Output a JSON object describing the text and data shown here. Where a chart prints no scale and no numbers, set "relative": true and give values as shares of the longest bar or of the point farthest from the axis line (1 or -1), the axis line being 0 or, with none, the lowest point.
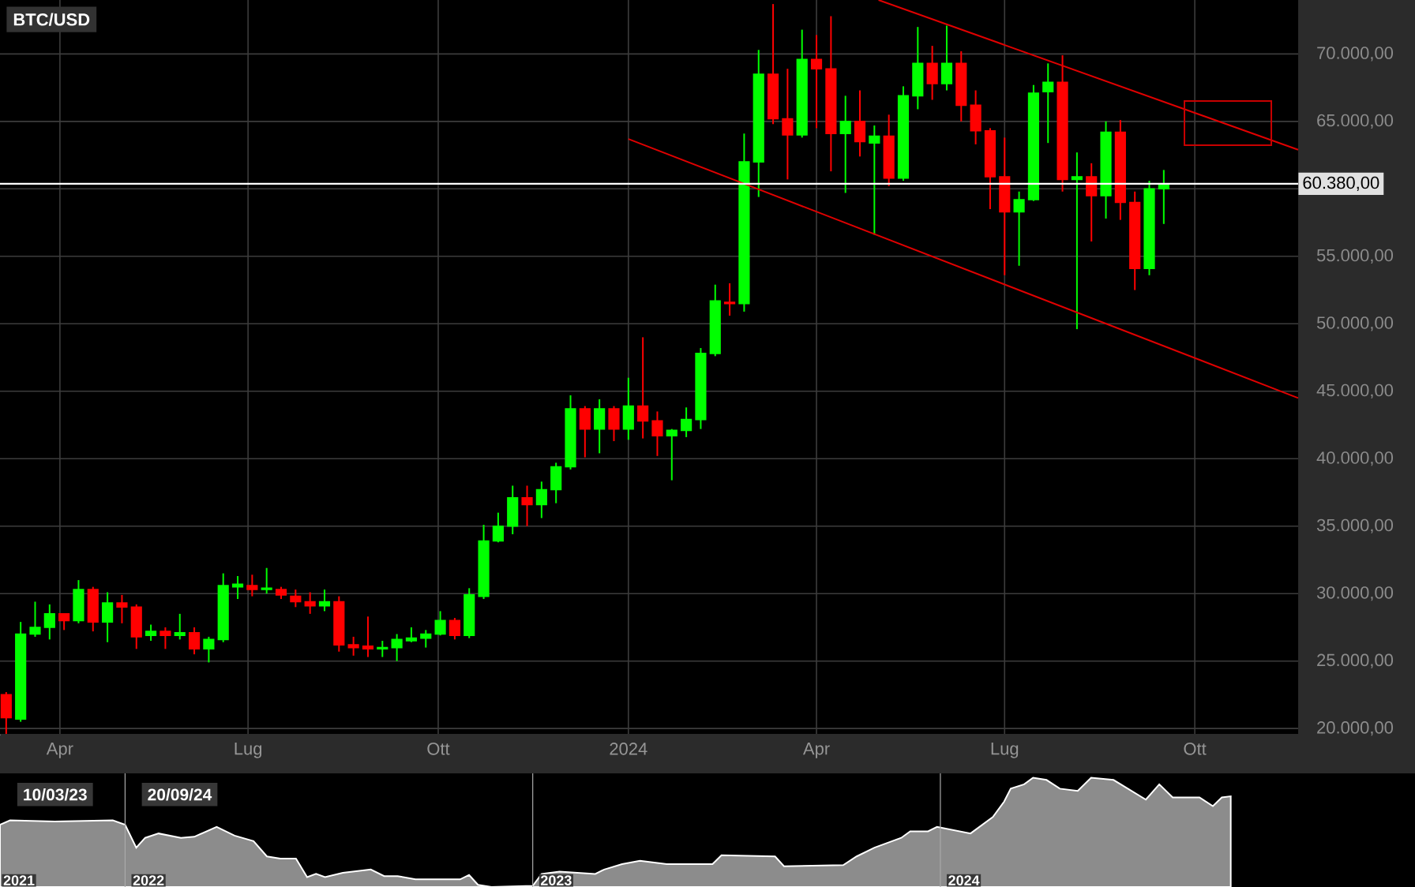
{
  "chart_data": [
    {
      "type": "candlestick",
      "title": "BTC/USD",
      "x": [
        "2023-03-06",
        "2023-03-13",
        "2023-03-20",
        "2023-03-27",
        "2023-04-03",
        "2023-04-10",
        "2023-04-17",
        "2023-04-24",
        "2023-05-01",
        "2023-05-08",
        "2023-05-15",
        "2023-05-22",
        "2023-05-29",
        "2023-06-05",
        "2023-06-12",
        "2023-06-19",
        "2023-06-26",
        "2023-07-03",
        "2023-07-10",
        "2023-07-17",
        "2023-07-24",
        "2023-07-31",
        "2023-08-07",
        "2023-08-14",
        "2023-08-21",
        "2023-08-28",
        "2023-09-04",
        "2023-09-11",
        "2023-09-18",
        "2023-09-25",
        "2023-10-02",
        "2023-10-09",
        "2023-10-16",
        "2023-10-23",
        "2023-10-30",
        "2023-11-06",
        "2023-11-13",
        "2023-11-20",
        "2023-11-27",
        "2023-12-04",
        "2023-12-11",
        "2023-12-18",
        "2023-12-25",
        "2024-01-01",
        "2024-01-08",
        "2024-01-15",
        "2024-01-22",
        "2024-01-29",
        "2024-02-05",
        "2024-02-12",
        "2024-02-19",
        "2024-02-26",
        "2024-03-04",
        "2024-03-11",
        "2024-03-18",
        "2024-03-25",
        "2024-04-01",
        "2024-04-08",
        "2024-04-15",
        "2024-04-22",
        "2024-04-29",
        "2024-05-06",
        "2024-05-13",
        "2024-05-20",
        "2024-05-27",
        "2024-06-03",
        "2024-06-10",
        "2024-06-17",
        "2024-06-24",
        "2024-07-01",
        "2024-07-08",
        "2024-07-15",
        "2024-07-22",
        "2024-07-29",
        "2024-08-05",
        "2024-08-12",
        "2024-08-19",
        "2024-08-26",
        "2024-09-02",
        "2024-09-09",
        "2024-09-16"
      ],
      "ohlc": [
        [
          22500,
          22700,
          19600,
          20800
        ],
        [
          20700,
          27900,
          20500,
          27000
        ],
        [
          27000,
          29400,
          26800,
          27500
        ],
        [
          27500,
          29200,
          26600,
          28500
        ],
        [
          28500,
          28500,
          27300,
          28000
        ],
        [
          28000,
          31000,
          27800,
          30300
        ],
        [
          30300,
          30500,
          27200,
          27900
        ],
        [
          27900,
          30100,
          26400,
          29300
        ],
        [
          29300,
          29900,
          27800,
          29000
        ],
        [
          29000,
          29200,
          25900,
          26800
        ],
        [
          26900,
          27700,
          26500,
          27200
        ],
        [
          27200,
          27500,
          25900,
          26900
        ],
        [
          26900,
          28500,
          26600,
          27100
        ],
        [
          27100,
          27500,
          25500,
          25900
        ],
        [
          25900,
          26800,
          24900,
          26600
        ],
        [
          26600,
          31500,
          26400,
          30600
        ],
        [
          30500,
          31300,
          29600,
          30700
        ],
        [
          30600,
          31400,
          29800,
          30300
        ],
        [
          30300,
          31900,
          30000,
          30400
        ],
        [
          30300,
          30500,
          29600,
          29900
        ],
        [
          29800,
          30300,
          29000,
          29400
        ],
        [
          29400,
          30100,
          28500,
          29100
        ],
        [
          29100,
          30300,
          28700,
          29400
        ],
        [
          29400,
          29800,
          25700,
          26200
        ],
        [
          26200,
          26800,
          25400,
          26000
        ],
        [
          26100,
          28300,
          25300,
          25900
        ],
        [
          25900,
          26500,
          25300,
          26000
        ],
        [
          26000,
          27000,
          25000,
          26600
        ],
        [
          26500,
          27500,
          26400,
          26700
        ],
        [
          26700,
          27300,
          26000,
          27000
        ],
        [
          27000,
          28700,
          26900,
          28000
        ],
        [
          28000,
          28200,
          26600,
          26900
        ],
        [
          26900,
          30400,
          26700,
          29900
        ],
        [
          29800,
          35100,
          29600,
          33900
        ],
        [
          33900,
          36000,
          33800,
          35000
        ],
        [
          35000,
          38000,
          34400,
          37100
        ],
        [
          37100,
          38000,
          35000,
          36600
        ],
        [
          36600,
          38300,
          35600,
          37700
        ],
        [
          37700,
          39700,
          36700,
          39400
        ],
        [
          39400,
          44700,
          39200,
          43700
        ],
        [
          43700,
          43900,
          40100,
          42200
        ],
        [
          42200,
          44400,
          40400,
          43700
        ],
        [
          43700,
          43900,
          41300,
          42200
        ],
        [
          42200,
          46000,
          41400,
          43900
        ],
        [
          43900,
          49000,
          41500,
          42800
        ],
        [
          42800,
          43500,
          40200,
          41700
        ],
        [
          41700,
          42200,
          38400,
          42100
        ],
        [
          42100,
          43800,
          41600,
          42900
        ],
        [
          42900,
          48200,
          42200,
          47800
        ],
        [
          47800,
          52900,
          47600,
          51700
        ],
        [
          51600,
          53000,
          50600,
          51500
        ],
        [
          51500,
          64100,
          50900,
          62000
        ],
        [
          62000,
          70300,
          59400,
          68500
        ],
        [
          68500,
          73700,
          64800,
          65200
        ],
        [
          65200,
          68900,
          60700,
          64000
        ],
        [
          64000,
          71800,
          63800,
          69600
        ],
        [
          69600,
          71400,
          64500,
          68900
        ],
        [
          68900,
          72800,
          61300,
          64100
        ],
        [
          64100,
          66900,
          59700,
          65000
        ],
        [
          65000,
          67300,
          62400,
          63500
        ],
        [
          63400,
          64700,
          56600,
          63900
        ],
        [
          63900,
          65500,
          60200,
          60800
        ],
        [
          60800,
          67600,
          60600,
          66900
        ],
        [
          66900,
          72000,
          65900,
          69300
        ],
        [
          69300,
          70600,
          66600,
          67800
        ],
        [
          67800,
          72100,
          67300,
          69300
        ],
        [
          69300,
          70200,
          65000,
          66200
        ],
        [
          66200,
          67300,
          63300,
          64300
        ],
        [
          64300,
          64500,
          58500,
          60900
        ],
        [
          60900,
          63800,
          53600,
          58300
        ],
        [
          58300,
          59800,
          54300,
          59200
        ],
        [
          59200,
          67700,
          59100,
          67100
        ],
        [
          67200,
          69300,
          63400,
          67900
        ],
        [
          67900,
          69900,
          59800,
          60700
        ],
        [
          60700,
          62700,
          49600,
          60900
        ],
        [
          60900,
          61900,
          56100,
          59500
        ],
        [
          59500,
          65000,
          57800,
          64200
        ],
        [
          64200,
          65100,
          57700,
          59000
        ],
        [
          59000,
          59800,
          52500,
          54100
        ],
        [
          54100,
          60600,
          53600,
          60000
        ],
        [
          60000,
          61400,
          57400,
          60380
        ]
      ],
      "colors": [
        "#ff0000",
        "#00ff00",
        "#00ff00",
        "#00ff00",
        "#ff0000",
        "#00ff00",
        "#ff0000",
        "#00ff00",
        "#ff0000",
        "#ff0000",
        "#00ff00",
        "#ff0000",
        "#00ff00",
        "#ff0000",
        "#00ff00",
        "#00ff00",
        "#00ff00",
        "#ff0000",
        "#00ff00",
        "#ff0000",
        "#ff0000",
        "#ff0000",
        "#00ff00",
        "#ff0000",
        "#ff0000",
        "#ff0000",
        "#00ff00",
        "#00ff00",
        "#00ff00",
        "#00ff00",
        "#00ff00",
        "#ff0000",
        "#00ff00",
        "#00ff00",
        "#00ff00",
        "#00ff00",
        "#ff0000",
        "#00ff00",
        "#00ff00",
        "#00ff00",
        "#ff0000",
        "#00ff00",
        "#ff0000",
        "#00ff00",
        "#ff0000",
        "#ff0000",
        "#00ff00",
        "#00ff00",
        "#00ff00",
        "#00ff00",
        "#ff0000",
        "#00ff00",
        "#00ff00",
        "#ff0000",
        "#ff0000",
        "#00ff00",
        "#ff0000",
        "#ff0000",
        "#00ff00",
        "#ff0000",
        "#00ff00",
        "#ff0000",
        "#00ff00",
        "#00ff00",
        "#ff0000",
        "#00ff00",
        "#ff0000",
        "#ff0000",
        "#ff0000",
        "#ff0000",
        "#00ff00",
        "#00ff00",
        "#00ff00",
        "#ff0000",
        "#00ff00",
        "#ff0000",
        "#00ff00",
        "#ff0000",
        "#ff0000",
        "#00ff00",
        "#00ff00"
      ],
      "series": [
        {
          "type": "line",
          "x": [
            "2024-05-01",
            "2024-11-20"
          ],
          "values": [
            74000,
            62900
          ],
          "color": "#e00000"
        },
        {
          "type": "line",
          "x": [
            "2024-01-01",
            "2024-11-20"
          ],
          "values": [
            63700,
            44500
          ],
          "color": "#e00000"
        }
      ],
      "ref_lines": [
        {
          "axis": "y",
          "value": 60380,
          "label": "60.380,00",
          "color": "#ffffff"
        }
      ],
      "xlim": [
        "2023-03-03",
        "2024-11-20"
      ],
      "ylim": [
        19600,
        74000
      ],
      "xticks": [
        {
          "value": "2023-04-01",
          "label": "Apr"
        },
        {
          "value": "2023-07-01",
          "label": "Lug"
        },
        {
          "value": "2023-10-01",
          "label": "Ott"
        },
        {
          "value": "2024-01-01",
          "label": "2024"
        },
        {
          "value": "2024-04-01",
          "label": "Apr"
        },
        {
          "value": "2024-07-01",
          "label": "Lug"
        },
        {
          "value": "2024-10-01",
          "label": "Ott"
        }
      ],
      "yticks": [
        {
          "value": 20000,
          "label": "20.000,00"
        },
        {
          "value": 25000,
          "label": "25.000,00"
        },
        {
          "value": 30000,
          "label": "30.000,00"
        },
        {
          "value": 35000,
          "label": "35.000,00"
        },
        {
          "value": 40000,
          "label": "40.000,00"
        },
        {
          "value": 45000,
          "label": "45.000,00"
        },
        {
          "value": 50000,
          "label": "50.000,00"
        },
        {
          "value": 55000,
          "label": "55.000,00"
        },
        {
          "value": 60000,
          "label": null
        },
        {
          "value": 65000,
          "label": "65.000,00"
        },
        {
          "value": 70000,
          "label": "70.000,00"
        }
      ],
      "grid": true
    },
    {
      "type": "area",
      "relative": true,
      "color": "#8c8c8c",
      "x": [
        "2021-09-11",
        "2021-09-20",
        "2021-10-30",
        "2021-12-21",
        "2022-01-01",
        "2022-01-11",
        "2022-01-19",
        "2022-01-31",
        "2022-02-20",
        "2022-03-04",
        "2022-03-24",
        "2022-04-09",
        "2022-04-26",
        "2022-05-08",
        "2022-05-20",
        "2022-06-03",
        "2022-06-13",
        "2022-06-21",
        "2022-06-29",
        "2022-07-15",
        "2022-08-09",
        "2022-08-21",
        "2022-09-02",
        "2022-09-18",
        "2022-10-28",
        "2022-11-05",
        "2022-11-13",
        "2022-11-25",
        "2023-01-01",
        "2023-01-09",
        "2023-01-25",
        "2023-02-26",
        "2023-03-06",
        "2023-03-22",
        "2023-04-07",
        "2023-05-01",
        "2023-06-11",
        "2023-06-19",
        "2023-08-06",
        "2023-08-14",
        "2023-10-06",
        "2023-10-18",
        "2023-11-03",
        "2023-11-27",
        "2023-12-05",
        "2023-12-21",
        "2023-12-29",
        "2024-01-28",
        "2024-02-17",
        "2024-02-27",
        "2024-03-04",
        "2024-03-16",
        "2024-03-24",
        "2024-04-05",
        "2024-04-17",
        "2024-05-03",
        "2024-05-15",
        "2024-06-04",
        "2024-07-03",
        "2024-07-15",
        "2024-07-27",
        "2024-08-20",
        "2024-09-01",
        "2024-09-09",
        "2024-09-17"
      ],
      "values": [
        0.57,
        0.61,
        0.6,
        0.61,
        0.57,
        0.36,
        0.45,
        0.49,
        0.45,
        0.46,
        0.55,
        0.47,
        0.42,
        0.28,
        0.26,
        0.26,
        0.09,
        0.12,
        0.09,
        0.13,
        0.16,
        0.1,
        0.1,
        0.07,
        0.07,
        0.11,
        0.02,
        0,
        0.01,
        0.12,
        0.14,
        0.12,
        0.16,
        0.21,
        0.24,
        0.21,
        0.21,
        0.29,
        0.28,
        0.19,
        0.2,
        0.28,
        0.36,
        0.45,
        0.51,
        0.51,
        0.55,
        0.49,
        0.64,
        0.78,
        0.9,
        0.94,
        1,
        0.98,
        0.9,
        0.88,
        1,
        0.98,
        0.8,
        0.94,
        0.82,
        0.82,
        0.74,
        0.82,
        0.83
      ],
      "xlim": [
        "2021-09-11",
        "2025-03-01"
      ],
      "xticks": [
        {
          "value": "2021-09-28",
          "label": "2021"
        },
        {
          "value": "2022-01-22",
          "label": "2022"
        },
        {
          "value": "2023-01-22",
          "label": "2023"
        },
        {
          "value": "2024-01-22",
          "label": "2024"
        }
      ],
      "ref_lines": [
        {
          "axis": "x",
          "value": "2022-01-01",
          "color": "#aaaaaa"
        },
        {
          "axis": "x",
          "value": "2023-01-01",
          "color": "#aaaaaa"
        },
        {
          "axis": "x",
          "value": "2024-01-01",
          "color": "#aaaaaa"
        }
      ],
      "annotations": [
        "10/03/23",
        "20/09/24"
      ]
    }
  ]
}
